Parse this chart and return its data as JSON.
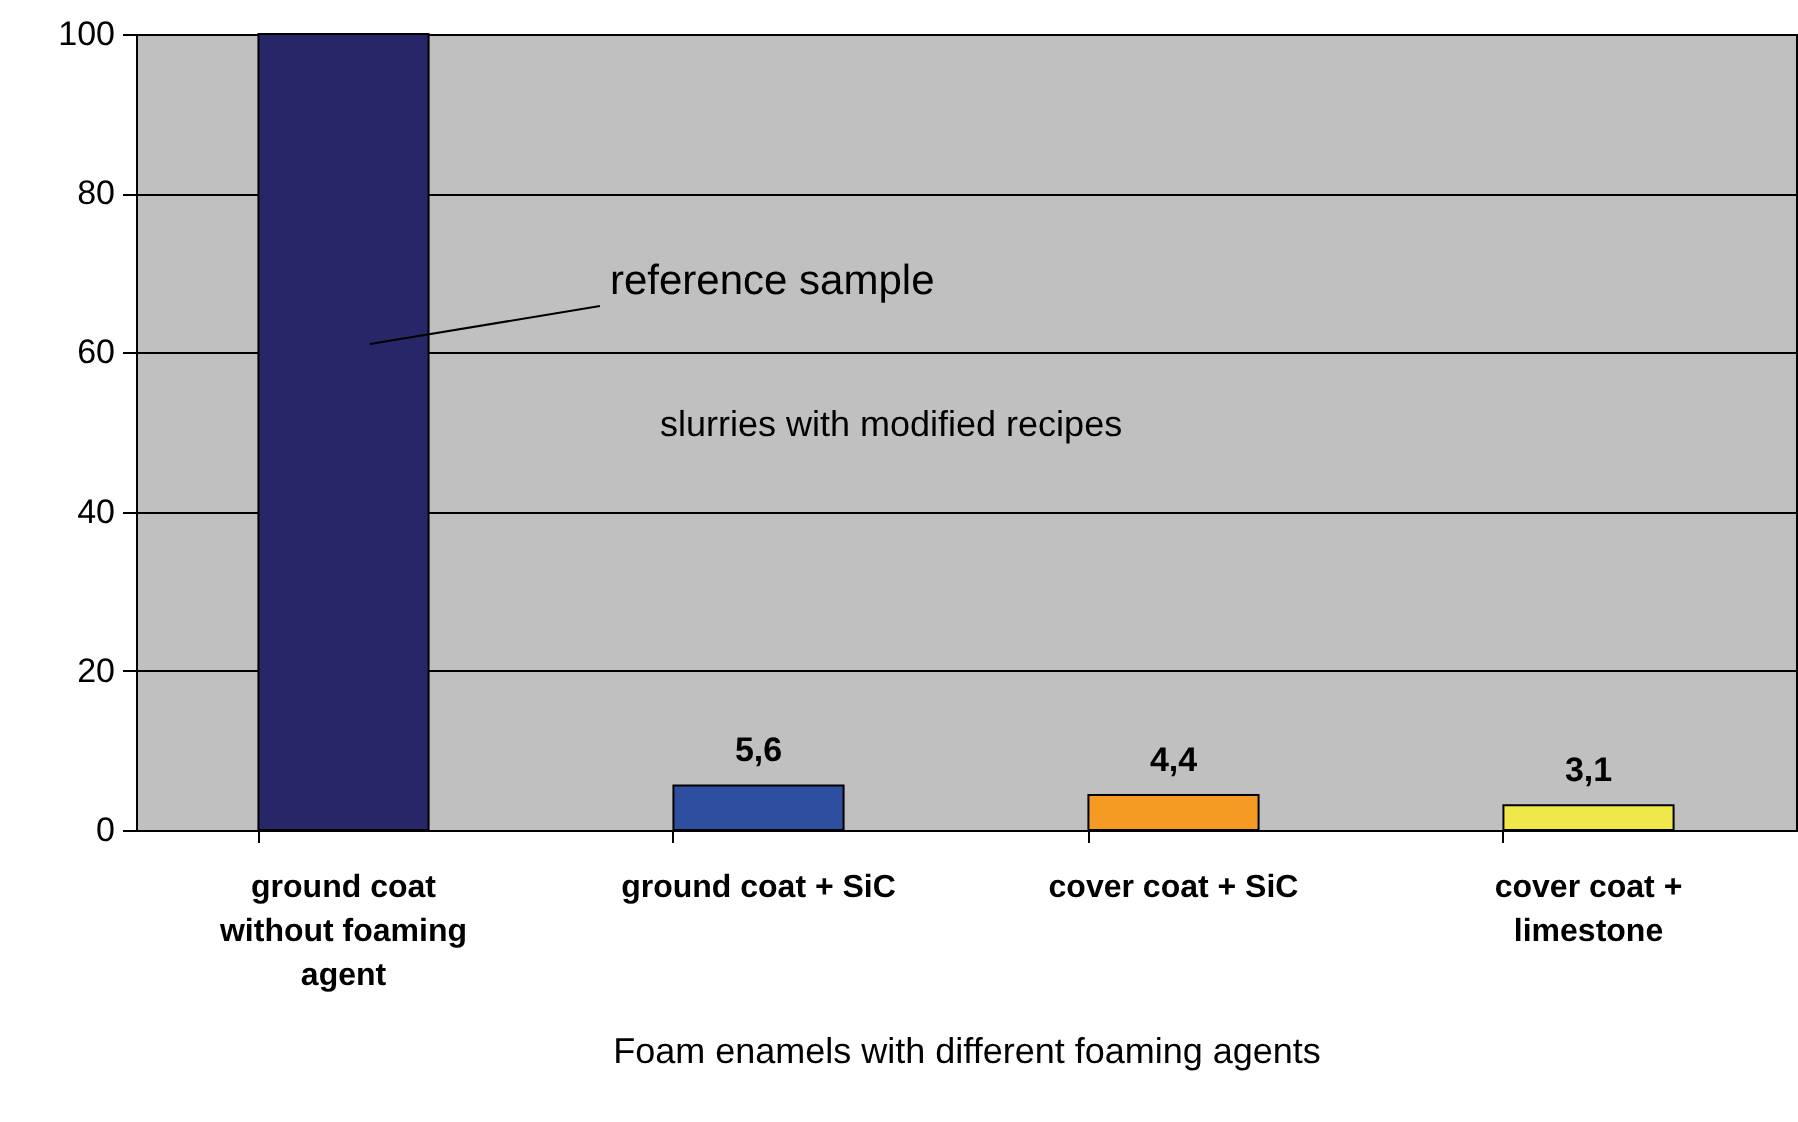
{
  "chart_data": {
    "type": "bar",
    "xlabel": "Foam enamels with different foaming agents",
    "categories": [
      "ground coat without foaming agent",
      "ground coat + SiC",
      "cover coat + SiC",
      "cover coat + limestone"
    ],
    "values": [
      100,
      5.6,
      4.4,
      3.1
    ],
    "colors": [
      "#262669",
      "#2e4fa0",
      "#f59a23",
      "#f0e84a"
    ],
    "value_labels": [
      null,
      "5,6",
      "4,4",
      "3,1"
    ],
    "ylim": [
      0,
      100
    ],
    "yticks": [
      0,
      20,
      40,
      60,
      80,
      100
    ],
    "grid": "y",
    "annotations": [
      "reference sample",
      "slurries with modified recipes"
    ]
  }
}
